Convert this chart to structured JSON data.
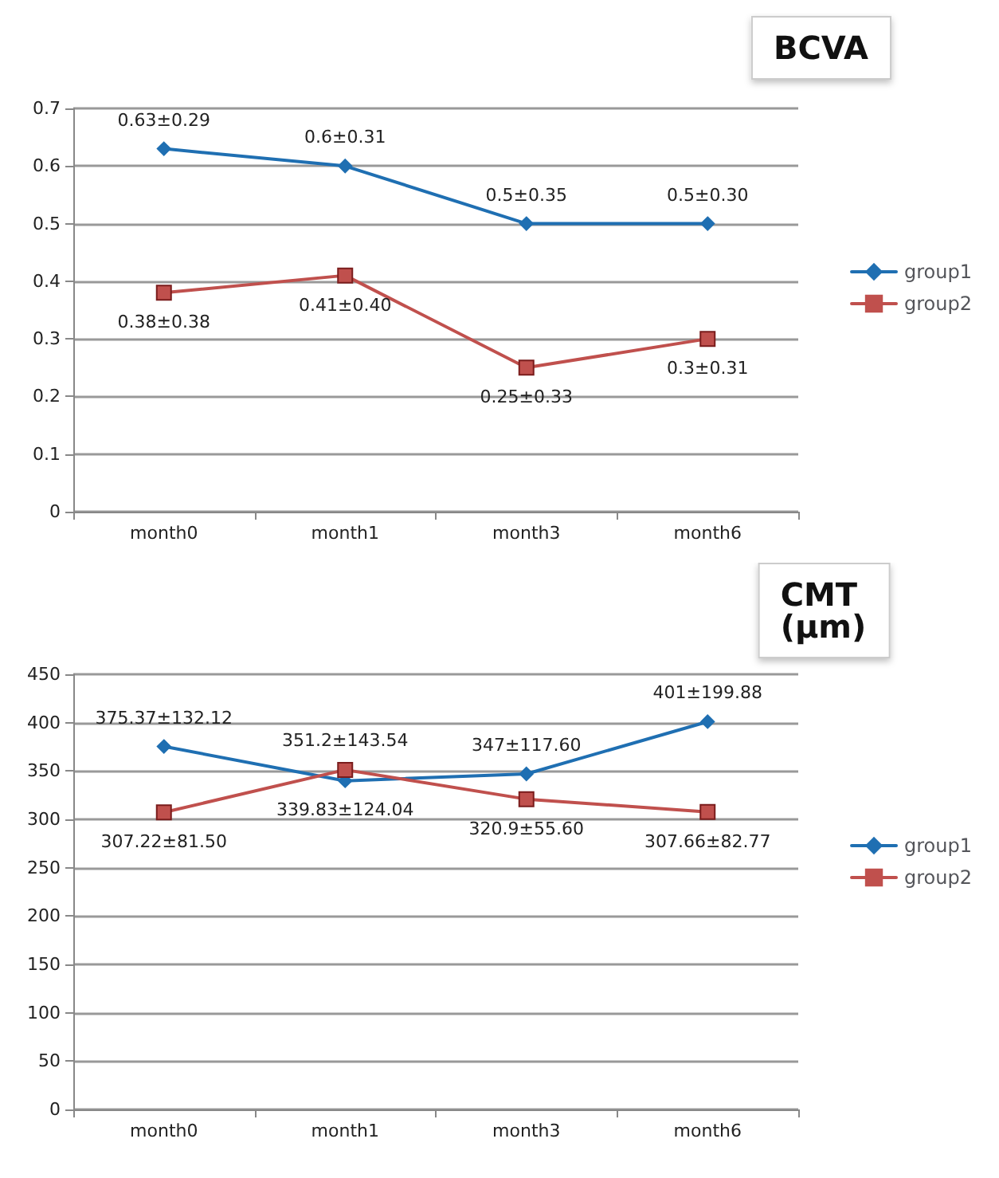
{
  "chart_data": [
    {
      "type": "line",
      "title": "BCVA",
      "categories": [
        "month0",
        "month1",
        "month3",
        "month6"
      ],
      "series": [
        {
          "name": "group1",
          "color": "#1f6fb2",
          "marker": "diamond",
          "values": [
            0.63,
            0.6,
            0.5,
            0.5
          ],
          "value_labels": [
            "0.63±0.29",
            "0.6±0.31",
            "0.5±0.35",
            "0.5±0.30"
          ]
        },
        {
          "name": "group2",
          "color": "#c0504d",
          "marker": "square",
          "values": [
            0.38,
            0.41,
            0.25,
            0.3
          ],
          "value_labels": [
            "0.38±0.38",
            "0.41±0.40",
            "0.25±0.33",
            "0.3±0.31"
          ]
        }
      ],
      "ylim": [
        0,
        0.7
      ],
      "yticks": [
        0,
        0.1,
        0.2,
        0.3,
        0.4,
        0.5,
        0.6,
        0.7
      ],
      "grid": "y",
      "legend": "right"
    },
    {
      "type": "line",
      "title": "CMT (μm)",
      "categories": [
        "month0",
        "month1",
        "month3",
        "month6"
      ],
      "series": [
        {
          "name": "group1",
          "color": "#1f6fb2",
          "marker": "diamond",
          "values": [
            375.37,
            339.83,
            347,
            401
          ],
          "value_labels": [
            "375.37±132.12",
            "339.83±124.04",
            "347±117.60",
            "401±199.88"
          ]
        },
        {
          "name": "group2",
          "color": "#c0504d",
          "marker": "square",
          "values": [
            307.22,
            351.2,
            320.9,
            307.66
          ],
          "value_labels": [
            "307.22±81.50",
            "351.2±143.54",
            "320.9±55.60",
            "307.66±82.77"
          ]
        }
      ],
      "ylim": [
        0,
        450
      ],
      "yticks": [
        0,
        50,
        100,
        150,
        200,
        250,
        300,
        350,
        400,
        450
      ],
      "grid": "y",
      "legend": "right"
    }
  ]
}
